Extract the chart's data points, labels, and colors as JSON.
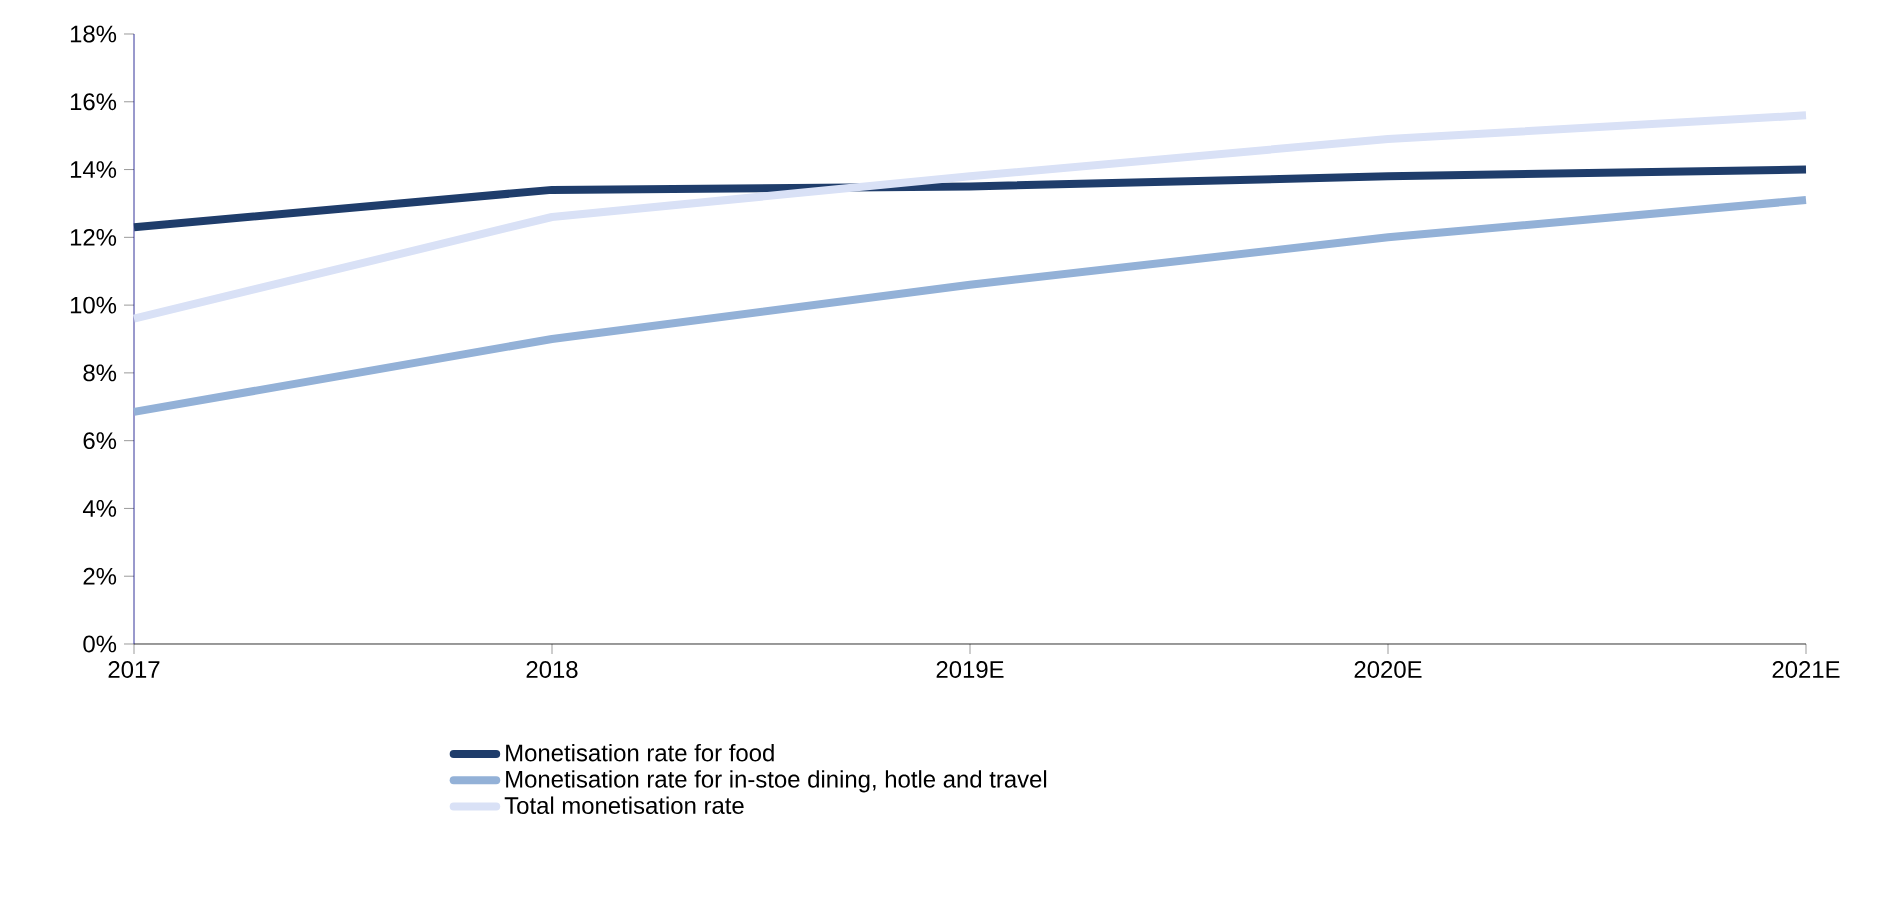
{
  "chart_data": {
    "type": "line",
    "categories": [
      "2017",
      "2018",
      "2019E",
      "2020E",
      "2021E"
    ],
    "series": [
      {
        "name": "Monetisation rate for food",
        "color": "#1f3d6b",
        "values": [
          12.3,
          13.4,
          13.5,
          13.8,
          14.0
        ]
      },
      {
        "name": "Monetisation rate for in-stoe dining, hotle and travel",
        "color": "#93b1d7",
        "values": [
          6.85,
          9.0,
          10.6,
          12.0,
          13.1
        ]
      },
      {
        "name": "Total monetisation rate",
        "color": "#d9e1f6",
        "values": [
          9.6,
          12.6,
          13.8,
          14.9,
          15.6
        ]
      }
    ],
    "ylim": [
      0,
      18
    ],
    "yticks": [
      {
        "value": 0,
        "label": "0%"
      },
      {
        "value": 2,
        "label": "2%"
      },
      {
        "value": 4,
        "label": "4%"
      },
      {
        "value": 6,
        "label": "6%"
      },
      {
        "value": 8,
        "label": "8%"
      },
      {
        "value": 10,
        "label": "10%"
      },
      {
        "value": 12,
        "label": "12%"
      },
      {
        "value": 14,
        "label": "14%"
      },
      {
        "value": 16,
        "label": "16%"
      },
      {
        "value": 18,
        "label": "18%"
      }
    ],
    "grid": false,
    "legend": "bottom",
    "marker": "none",
    "line_style": "solid"
  }
}
